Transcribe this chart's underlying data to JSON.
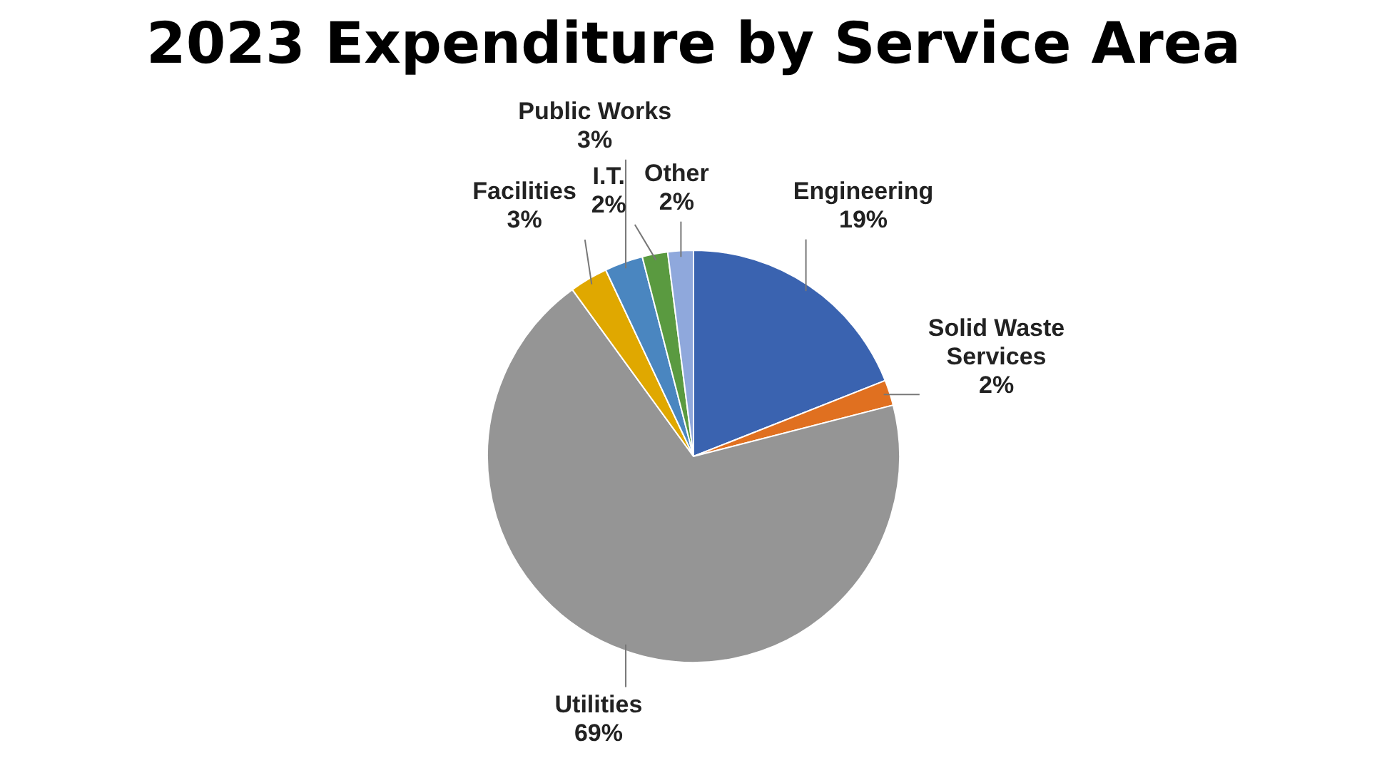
{
  "chart_data": {
    "type": "pie",
    "title": "2023 Expenditure by Service Area",
    "categories": [
      "Engineering",
      "Solid Waste Services",
      "Utilities",
      "Facilities",
      "Public Works",
      "I.T.",
      "Other"
    ],
    "values": [
      19,
      2,
      69,
      3,
      3,
      2,
      2
    ],
    "colors": [
      "#3a63b0",
      "#e07020",
      "#959595",
      "#e0a800",
      "#4a86c0",
      "#5a9a40",
      "#8fa8dc"
    ],
    "value_labels": [
      "19%",
      "2%",
      "69%",
      "3%",
      "3%",
      "2%",
      "2%"
    ],
    "legend": false
  }
}
